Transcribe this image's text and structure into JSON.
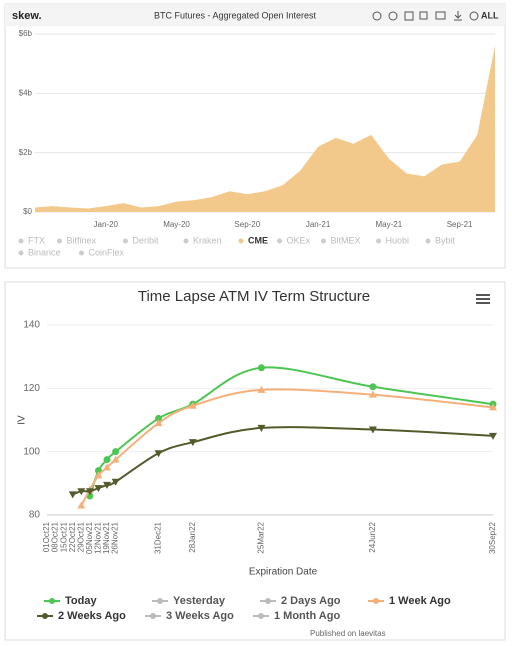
{
  "chart_data": [
    {
      "type": "area",
      "brand": "skew.",
      "title": "BTC Futures - Aggregated Open Interest",
      "toolbar_label": "ALL",
      "x": [
        null,
        null,
        null,
        null,
        "Jan-20",
        null,
        null,
        null,
        "May-20",
        null,
        null,
        null,
        "Sep-20",
        null,
        null,
        null,
        "Jan-21",
        null,
        null,
        null,
        "May-21",
        null,
        null,
        null,
        "Sep-21",
        null,
        null
      ],
      "series": [
        {
          "name": "FTX",
          "visible": false
        },
        {
          "name": "Bitfinex",
          "visible": false
        },
        {
          "name": "Deribit",
          "visible": false
        },
        {
          "name": "Kraken",
          "visible": false
        },
        {
          "name": "CME",
          "visible": true,
          "color": "#f2c98a",
          "values": [
            0.15,
            0.2,
            0.15,
            0.12,
            0.2,
            0.3,
            0.15,
            0.2,
            0.35,
            0.4,
            0.5,
            0.7,
            0.6,
            0.7,
            0.9,
            1.4,
            2.2,
            2.5,
            2.3,
            2.6,
            1.8,
            1.3,
            1.2,
            1.6,
            1.7,
            2.6,
            5.6
          ]
        },
        {
          "name": "OKEx",
          "visible": false
        },
        {
          "name": "BitMEX",
          "visible": false
        },
        {
          "name": "Huobi",
          "visible": false
        },
        {
          "name": "Bybit",
          "visible": false
        },
        {
          "name": "Binance",
          "visible": false
        },
        {
          "name": "CoinFlex",
          "visible": false
        }
      ],
      "ylim": [
        0,
        6
      ],
      "yticks": [
        {
          "value": 0,
          "label": "$0"
        },
        {
          "value": 2,
          "label": "$2b"
        },
        {
          "value": 4,
          "label": "$4b"
        },
        {
          "value": 6,
          "label": "$6b"
        }
      ],
      "grid": true
    },
    {
      "type": "line",
      "title": "Time Lapse ATM IV Term Structure",
      "x_label": "Expiration Date",
      "y_label": "IV",
      "credit": "Published on laevitas",
      "x": [
        "01Oct21",
        "08Oct21",
        "15Oct21",
        "22Oct21",
        "29Oct21",
        "05Nov21",
        "12Nov21",
        "19Nov21",
        "26Nov21",
        "31Dec21",
        "28Jan22",
        "25Mar22",
        "24Jun22",
        "30Sep22"
      ],
      "series": [
        {
          "name": "Today",
          "visible": true,
          "color": "#4cc552",
          "marker": "circle",
          "values": [
            null,
            null,
            null,
            null,
            null,
            86,
            94,
            97.5,
            100,
            110.5,
            115,
            126.5,
            120.5,
            115
          ]
        },
        {
          "name": "Yesterday",
          "visible": false,
          "color": "#bbbbbb",
          "marker": "diamond"
        },
        {
          "name": "2 Days Ago",
          "visible": false,
          "color": "#bbbbbb",
          "marker": "square"
        },
        {
          "name": "1 Week Ago",
          "visible": true,
          "color": "#f5b07a",
          "marker": "triangle",
          "values": [
            null,
            null,
            null,
            null,
            83,
            88,
            92.5,
            95,
            97.5,
            109,
            114.5,
            119.5,
            118,
            114
          ]
        },
        {
          "name": "2 Weeks Ago",
          "visible": true,
          "color": "#545a2c",
          "marker": "triangle-down",
          "values": [
            null,
            null,
            null,
            86.5,
            87.5,
            87.5,
            88.5,
            89.5,
            90.5,
            99.5,
            103,
            107.5,
            107,
            105
          ]
        },
        {
          "name": "3 Weeks Ago",
          "visible": false,
          "color": "#bbbbbb",
          "marker": "circle"
        },
        {
          "name": "1 Month Ago",
          "visible": false,
          "color": "#bbbbbb",
          "marker": "diamond"
        }
      ],
      "ylim": [
        80,
        140
      ],
      "yticks": [
        80,
        100,
        120,
        140
      ],
      "grid": true
    }
  ]
}
